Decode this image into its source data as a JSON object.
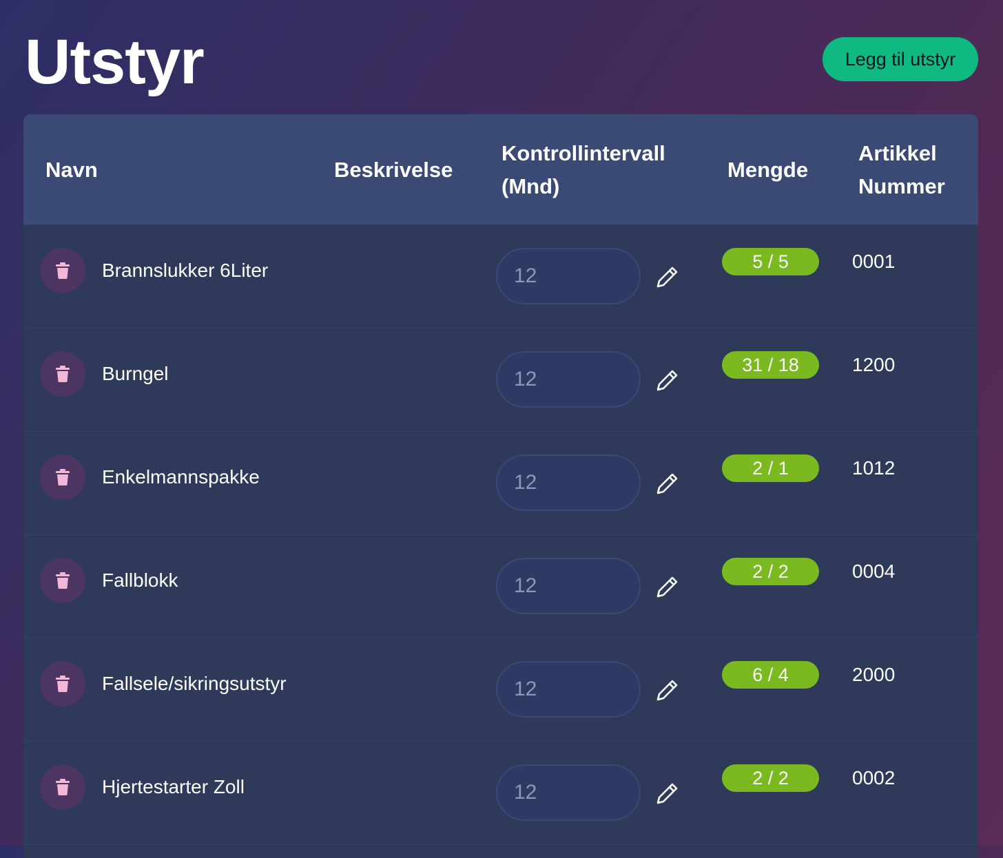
{
  "page": {
    "title": "Utstyr",
    "add_button_label": "Legg til utstyr"
  },
  "colors": {
    "accent_button": "#10b981",
    "quantity_badge": "#7ab91f",
    "delete_button_bg": "#4c3560",
    "delete_icon": "#f3b8d8",
    "header_bg": "#3a4a74",
    "row_bg": "#2f3a5a"
  },
  "table": {
    "columns": {
      "name": "Navn",
      "description": "Beskrivelse",
      "interval": "Kontrollintervall (Mnd)",
      "quantity": "Mengde",
      "article_number": "Artikkel Nummer"
    },
    "rows": [
      {
        "name": "Brannslukker 6Liter",
        "description": "",
        "interval_placeholder": "12",
        "quantity": "5 / 5",
        "article_number": "0001"
      },
      {
        "name": "Burngel",
        "description": "",
        "interval_placeholder": "12",
        "quantity": "31 / 18",
        "article_number": "1200"
      },
      {
        "name": "Enkelmannspakke",
        "description": "",
        "interval_placeholder": "12",
        "quantity": "2 / 1",
        "article_number": "1012"
      },
      {
        "name": "Fallblokk",
        "description": "",
        "interval_placeholder": "12",
        "quantity": "2 / 2",
        "article_number": "0004"
      },
      {
        "name": "Fallsele/sikringsutstyr",
        "description": "",
        "interval_placeholder": "12",
        "quantity": "6 / 4",
        "article_number": "2000"
      },
      {
        "name": "Hjertestarter Zoll",
        "description": "",
        "interval_placeholder": "12",
        "quantity": "2 / 2",
        "article_number": "0002"
      }
    ],
    "icons": {
      "delete": "trash-icon",
      "edit": "pencil-icon"
    }
  }
}
